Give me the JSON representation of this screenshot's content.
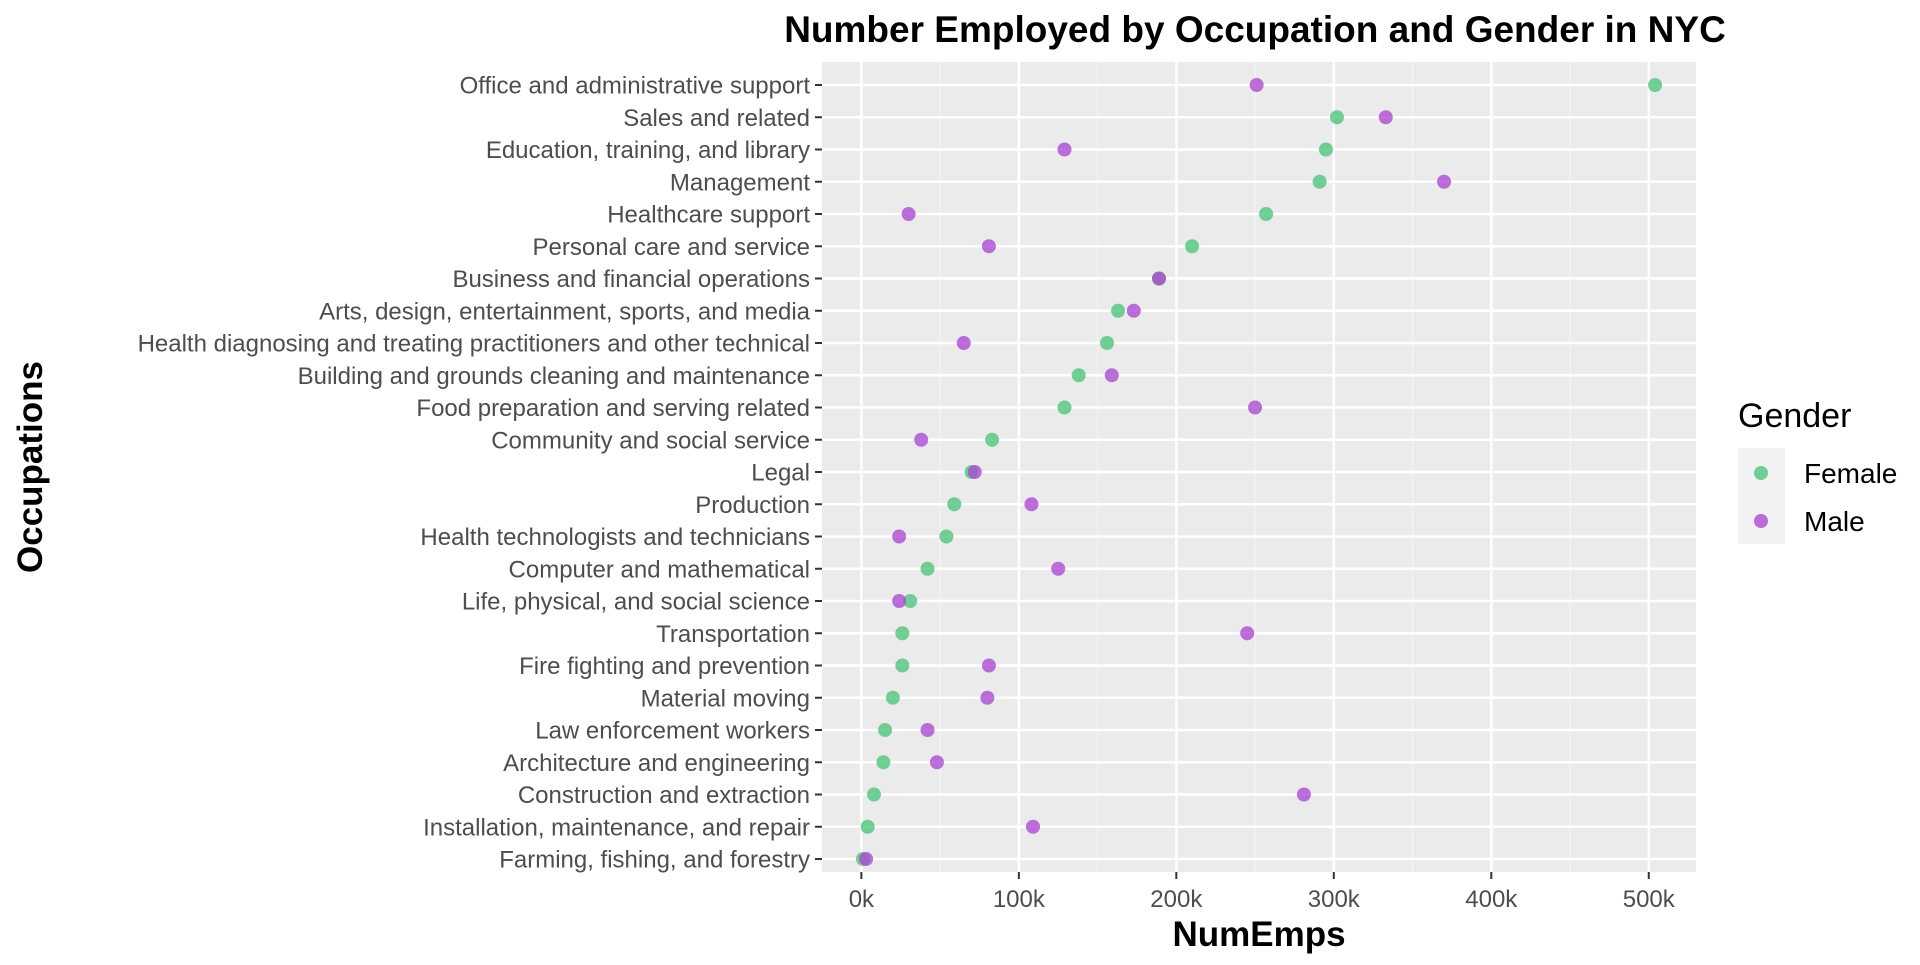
{
  "chart_data": {
    "type": "scatter",
    "title": "Number Employed by Occupation and Gender in NYC",
    "xlabel": "NumEmps",
    "ylabel": "Occupations",
    "xlim": [
      -25000,
      530000
    ],
    "x_ticks": [
      0,
      100000,
      200000,
      300000,
      400000,
      500000
    ],
    "x_tick_labels": [
      "0k",
      "100k",
      "200k",
      "300k",
      "400k",
      "500k"
    ],
    "grid": true,
    "legend": {
      "title": "Gender",
      "position": "right"
    },
    "categories": [
      "Office and administrative support",
      "Sales and related",
      "Education, training, and library",
      "Management",
      "Healthcare support",
      "Personal care and service",
      "Business and financial operations",
      "Arts, design, entertainment, sports, and media",
      "Health diagnosing and treating practitioners and other technical",
      "Building and grounds cleaning and maintenance",
      "Food preparation and serving related",
      "Community and social service",
      "Legal",
      "Production",
      "Health technologists and technicians",
      "Computer and mathematical",
      "Life, physical, and social science",
      "Transportation",
      "Fire fighting and prevention",
      "Material moving",
      "Law enforcement workers",
      "Architecture and engineering",
      "Construction and extraction",
      "Installation, maintenance, and repair",
      "Farming, fishing, and forestry"
    ],
    "series": [
      {
        "name": "Female",
        "color": "#4cc47a",
        "values": [
          504000,
          302000,
          295000,
          291000,
          257000,
          210000,
          189000,
          163000,
          156000,
          138000,
          129000,
          83000,
          70000,
          59000,
          54000,
          42000,
          31000,
          26000,
          26000,
          20000,
          15000,
          14000,
          8000,
          4000,
          1000
        ]
      },
      {
        "name": "Male",
        "color": "#ab46d2",
        "values": [
          251000,
          333000,
          129000,
          370000,
          30000,
          81000,
          189000,
          173000,
          65000,
          159000,
          250000,
          38000,
          72000,
          108000,
          24000,
          125000,
          24000,
          245000,
          81000,
          80000,
          42000,
          48000,
          281000,
          109000,
          3000
        ]
      }
    ]
  }
}
